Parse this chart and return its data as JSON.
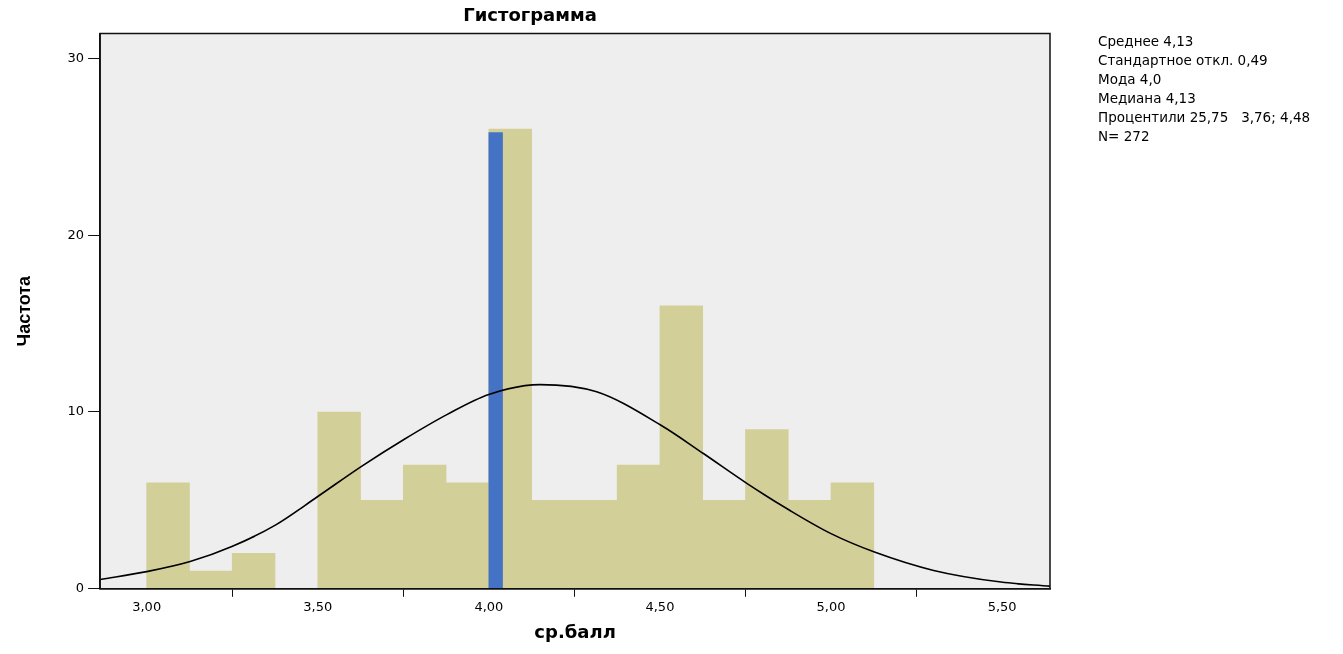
{
  "chart_data": {
    "type": "histogram",
    "title": "Гистограмма",
    "xlabel": "ср.балл",
    "ylabel": "Частота",
    "bins": [
      3.0,
      3.125,
      3.25,
      3.375,
      3.5,
      3.625,
      3.75,
      3.875,
      4.0,
      4.125,
      4.25,
      4.375,
      4.5,
      4.625,
      4.75,
      4.875,
      5.0,
      5.125
    ],
    "series": [
      {
        "type": "histogram",
        "color": "#d3cf98",
        "values": [
          6,
          1,
          2,
          0,
          10,
          5,
          7,
          6,
          26,
          5,
          5,
          7,
          16,
          5,
          9,
          5,
          6
        ]
      },
      {
        "type": "histogram",
        "bins": [
          4.0,
          4.04
        ],
        "color": "#4472c4",
        "values": [
          25.8
        ]
      },
      {
        "type": "line",
        "color": "#000000",
        "x": [
          2.864,
          3.0,
          3.127,
          3.249,
          3.376,
          3.5,
          3.629,
          3.753,
          3.88,
          4.0,
          4.149,
          4.315,
          4.503,
          4.627,
          4.755,
          4.879,
          5.0,
          5.127,
          5.3,
          5.497,
          5.64
        ],
        "values": [
          0.53,
          0.97,
          1.54,
          2.39,
          3.6,
          5.22,
          6.94,
          8.46,
          9.88,
          10.99,
          11.55,
          11.14,
          9.25,
          7.65,
          5.95,
          4.44,
          3.12,
          2.08,
          1.04,
          0.38,
          0.15
        ]
      }
    ],
    "xlim": [
      2.864,
      5.64
    ],
    "ylim": [
      0,
      31.4
    ],
    "xticks": [
      {
        "value": 3.0,
        "label": "3,00"
      },
      {
        "value": 3.5,
        "label": "3,50"
      },
      {
        "value": 4.0,
        "label": "4,00"
      },
      {
        "value": 4.5,
        "label": "4,50"
      },
      {
        "value": 5.0,
        "label": "5,00"
      },
      {
        "value": 5.5,
        "label": "5,50"
      }
    ],
    "yticks": [
      0,
      10,
      20,
      30
    ],
    "grid": false,
    "annotations": [
      "Среднее 4,13",
      "Стандартное откл. 0,49",
      "Мода 4,0",
      "Медиана 4,13",
      "Процентили 25,75   3,76; 4,48",
      "N= 272"
    ]
  }
}
